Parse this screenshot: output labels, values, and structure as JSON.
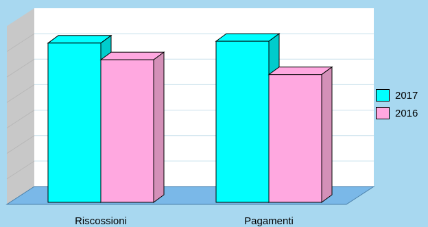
{
  "chart_data": {
    "type": "bar",
    "title": "",
    "xlabel": "",
    "ylabel": "",
    "categories": [
      "Riscossioni",
      "Pagamenti"
    ],
    "series": [
      {
        "name": "2017",
        "values": [
          0.86,
          0.87
        ],
        "color": "#00ffff",
        "side_color": "#00cccc"
      },
      {
        "name": "2016",
        "values": [
          0.77,
          0.69
        ],
        "color": "#ffa8e0",
        "side_color": "#d490b8"
      }
    ],
    "ylim": [
      0,
      1
    ],
    "grid": true,
    "legend": "right",
    "colors": {
      "background": "#a8d8f0",
      "plot_back": "#ffffff",
      "plot_side_wall": "#c8c8c8",
      "floor": "#7ab8e8"
    }
  }
}
